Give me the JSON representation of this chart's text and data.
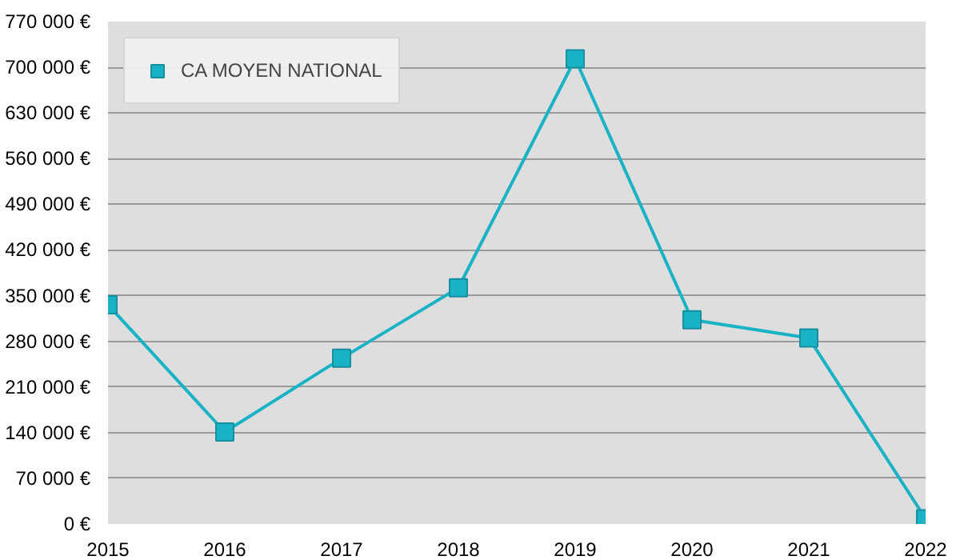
{
  "chart_data": {
    "type": "line",
    "x": [
      2015,
      2016,
      2017,
      2018,
      2019,
      2020,
      2021,
      2022
    ],
    "series": [
      {
        "name": "CA MOYEN NATIONAL",
        "color": "#1ab3c6",
        "values": [
          336000,
          141000,
          254000,
          362000,
          713000,
          313000,
          285000,
          8000
        ]
      }
    ],
    "xlim": [
      2015,
      2022
    ],
    "xticks": [
      2015,
      2016,
      2017,
      2018,
      2019,
      2020,
      2021,
      2022
    ],
    "ylim": [
      0,
      770000
    ],
    "yticks": [
      {
        "value": 0,
        "label": "0 €"
      },
      {
        "value": 70000,
        "label": "70 000 €"
      },
      {
        "value": 140000,
        "label": "140 000 €"
      },
      {
        "value": 210000,
        "label": "210 000 €"
      },
      {
        "value": 280000,
        "label": "280 000 €"
      },
      {
        "value": 350000,
        "label": "350 000 €"
      },
      {
        "value": 420000,
        "label": "420 000 €"
      },
      {
        "value": 490000,
        "label": "490 000 €"
      },
      {
        "value": 560000,
        "label": "560 000 €"
      },
      {
        "value": 630000,
        "label": "630 000 €"
      },
      {
        "value": 700000,
        "label": "700 000 €"
      },
      {
        "value": 770000,
        "label": "770 000 €"
      }
    ],
    "grid": "y",
    "legend": "top left",
    "marker": "square",
    "line_style": "solid"
  }
}
